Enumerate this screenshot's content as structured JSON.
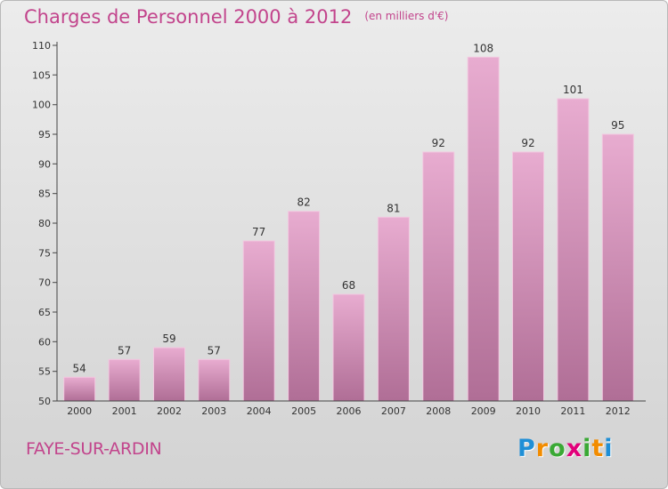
{
  "chart_data": {
    "type": "bar",
    "title": "Charges de Personnel 2000 à 2012",
    "subtitle": "(en milliers d'€)",
    "xlabel": "",
    "ylabel": "",
    "categories": [
      "2000",
      "2001",
      "2002",
      "2003",
      "2004",
      "2005",
      "2006",
      "2007",
      "2008",
      "2009",
      "2010",
      "2011",
      "2012"
    ],
    "values": [
      54,
      57,
      59,
      57,
      77,
      82,
      68,
      81,
      92,
      108,
      92,
      101,
      95
    ],
    "ylim": [
      50,
      110
    ],
    "yticks": [
      50,
      55,
      60,
      65,
      70,
      75,
      80,
      85,
      90,
      95,
      100,
      105,
      110
    ],
    "grid": false,
    "bar_color": "#d98cba"
  },
  "place_name": "FAYE-SUR-ARDIN",
  "brand": {
    "letters": [
      "P",
      "r",
      "o",
      "x",
      "i",
      "t",
      "i"
    ],
    "colors": [
      "#1f8fd6",
      "#f28c00",
      "#3aa935",
      "#e2007a",
      "#3aa935",
      "#f28c00",
      "#1f8fd6"
    ]
  },
  "colors": {
    "title": "#c2448c",
    "axis": "#333333"
  }
}
